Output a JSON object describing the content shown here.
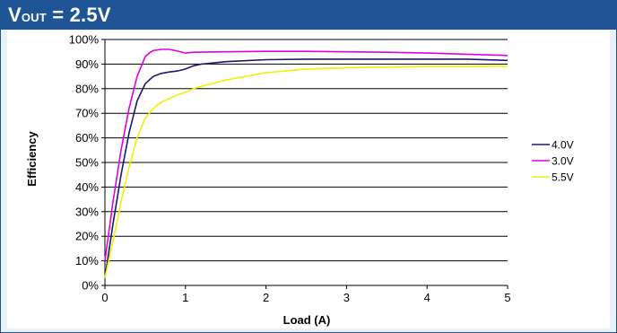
{
  "title": {
    "v": "V",
    "sub": "OUT",
    "rest": " = 2.5V"
  },
  "chart_data": {
    "type": "line",
    "xlabel": "Load (A)",
    "ylabel": "Efficiency",
    "xlim": [
      0,
      5
    ],
    "ylim": [
      0,
      100
    ],
    "xticks": [
      "0",
      "1",
      "2",
      "3",
      "4",
      "5"
    ],
    "yticks": [
      "0%",
      "10%",
      "20%",
      "30%",
      "40%",
      "50%",
      "60%",
      "70%",
      "80%",
      "90%",
      "100%"
    ],
    "grid": "horizontal",
    "legend": "right",
    "series": [
      {
        "name": "4.0V",
        "color": "#1a1a6e",
        "x": [
          0,
          0.1,
          0.2,
          0.3,
          0.4,
          0.5,
          0.6,
          0.7,
          0.8,
          0.9,
          1.0,
          1.1,
          1.2,
          1.3,
          1.5,
          2.0,
          2.5,
          3.0,
          3.5,
          4.0,
          4.5,
          5.0
        ],
        "y": [
          3,
          25,
          45,
          62,
          75,
          82,
          85,
          86.2,
          86.8,
          87.2,
          88,
          89.3,
          90,
          90.3,
          91,
          91.8,
          92,
          92,
          92,
          92,
          92,
          91.5
        ]
      },
      {
        "name": "3.0V",
        "color": "#e000e0",
        "x": [
          0,
          0.1,
          0.2,
          0.3,
          0.4,
          0.5,
          0.55,
          0.6,
          0.7,
          0.8,
          0.9,
          1.0,
          1.1,
          1.5,
          2.0,
          2.5,
          3.0,
          3.5,
          4.0,
          4.5,
          5.0
        ],
        "y": [
          10,
          34,
          55,
          72,
          85,
          93,
          94.5,
          95.5,
          96,
          96,
          95.3,
          94.5,
          94.8,
          95,
          95.2,
          95.2,
          95,
          94.8,
          94.5,
          94,
          93.5
        ]
      },
      {
        "name": "5.5V",
        "color": "#f0f000",
        "x": [
          0,
          0.1,
          0.2,
          0.3,
          0.4,
          0.5,
          0.6,
          0.7,
          0.8,
          0.9,
          1.0,
          1.1,
          1.2,
          1.5,
          2.0,
          2.5,
          3.0,
          3.5,
          4.0,
          4.5,
          5.0
        ],
        "y": [
          3,
          18,
          34,
          48,
          60,
          68,
          72,
          74.5,
          76,
          77.5,
          78.5,
          80,
          81,
          83.5,
          86.5,
          88,
          88.5,
          88.8,
          89,
          89,
          89.2
        ]
      }
    ]
  }
}
